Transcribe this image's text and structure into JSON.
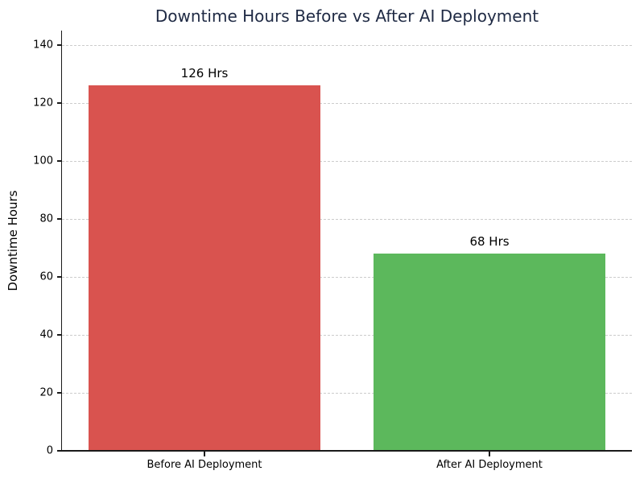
{
  "chart_data": {
    "type": "bar",
    "title": "Downtime Hours Before vs After AI Deployment",
    "xlabel": "",
    "ylabel": "Downtime Hours",
    "categories": [
      "Before AI Deployment",
      "After AI Deployment"
    ],
    "values": [
      126,
      68
    ],
    "value_labels": [
      "126 Hrs",
      "68 Hrs"
    ],
    "bar_colors": [
      "#d9534f",
      "#5cb85c"
    ],
    "ylim": [
      0,
      145
    ],
    "yticks": [
      0,
      20,
      40,
      60,
      80,
      100,
      120,
      140
    ],
    "grid": "horizontal dashed",
    "legend_position": "none"
  },
  "colors": {
    "title_text": "#1f2a44",
    "axis_text": "#000000",
    "grid_line": "#cccccc",
    "spine": "#1a1a1a",
    "background": "#ffffff"
  }
}
